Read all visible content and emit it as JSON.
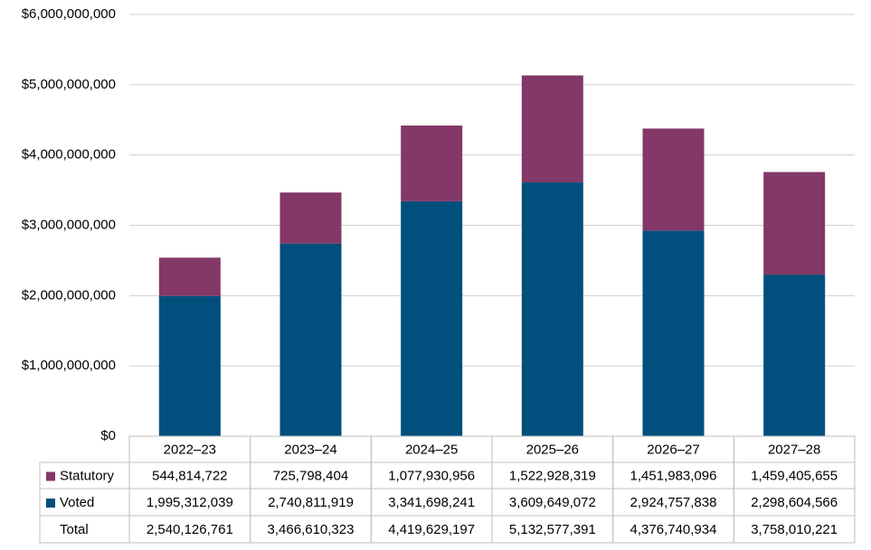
{
  "chart_data": {
    "type": "stacked-bar",
    "categories": [
      "2022–23",
      "2023–24",
      "2024–25",
      "2025–26",
      "2026–27",
      "2027–28"
    ],
    "series": [
      {
        "name": "Statutory",
        "color": "#833867",
        "values": [
          544814722,
          725798404,
          1077930956,
          1522928319,
          1451983096,
          1459405655
        ],
        "value_labels": [
          "544,814,722",
          "725,798,404",
          "1,077,930,956",
          "1,522,928,319",
          "1,451,983,096",
          "1,459,405,655"
        ]
      },
      {
        "name": "Voted",
        "color": "#004f7c",
        "values": [
          1995312039,
          2740811919,
          3341698241,
          3609649072,
          2924757838,
          2298604566
        ],
        "value_labels": [
          "1,995,312,039",
          "2,740,811,919",
          "3,341,698,241",
          "3,609,649,072",
          "2,924,757,838",
          "2,298,604,566"
        ]
      }
    ],
    "total_row": {
      "name": "Total",
      "values": [
        "2,540,126,761",
        "3,466,610,323",
        "4,419,629,197",
        "5,132,577,391",
        "4,376,740,934",
        "3,758,010,221"
      ]
    },
    "ylim": [
      0,
      6000000000
    ],
    "yticks": [
      {
        "value": 0,
        "label": "$0"
      },
      {
        "value": 1000000000,
        "label": "$1,000,000,000"
      },
      {
        "value": 2000000000,
        "label": "$2,000,000,000"
      },
      {
        "value": 3000000000,
        "label": "$3,000,000,000"
      },
      {
        "value": 4000000000,
        "label": "$4,000,000,000"
      },
      {
        "value": 5000000000,
        "label": "$5,000,000,000"
      },
      {
        "value": 6000000000,
        "label": "$6,000,000,000"
      }
    ],
    "grid": true
  }
}
